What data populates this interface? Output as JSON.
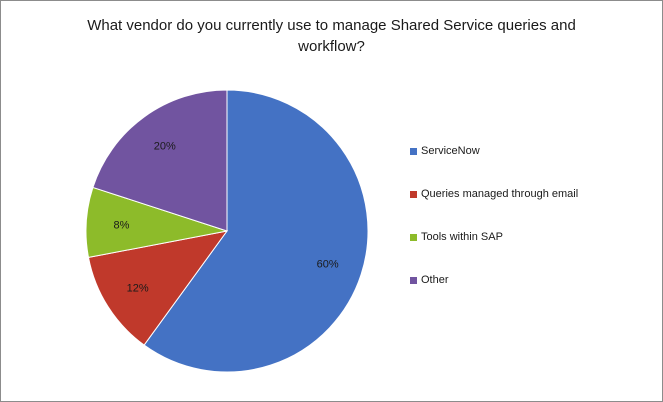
{
  "chart_data": {
    "type": "pie",
    "title_lines": [
      "What vendor  do you currently use to manage Shared Service queries and",
      "workflow?"
    ],
    "categories": [
      "ServiceNow",
      "Queries managed through email",
      "Tools within SAP",
      "Other"
    ],
    "values": [
      60,
      12,
      8,
      20
    ],
    "labels": [
      "60%",
      "12%",
      "8%",
      "20%"
    ],
    "colors": [
      "#4472c4",
      "#c0392b",
      "#8dbb2a",
      "#7154a0"
    ],
    "legend_position": "right"
  }
}
